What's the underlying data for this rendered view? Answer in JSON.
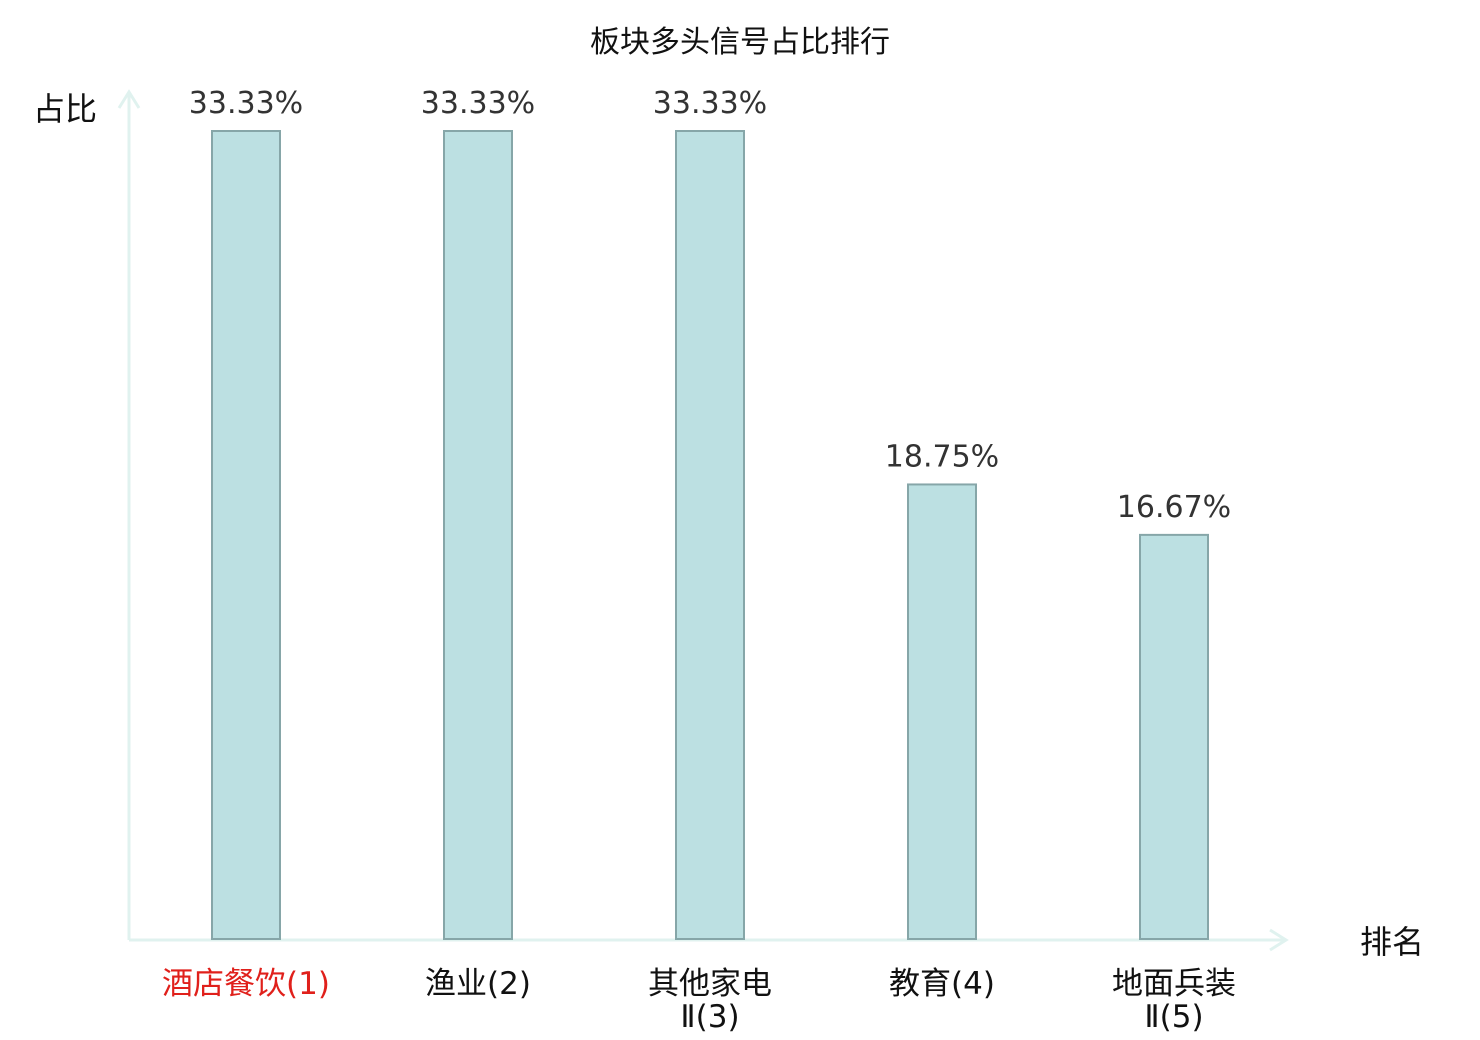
{
  "chart_data": {
    "type": "bar",
    "title": "板块多头信号占比排行",
    "ylabel": "占比",
    "xlabel": "排名",
    "categories": [
      {
        "lines": [
          "酒店餐饮(1)"
        ],
        "highlight": true
      },
      {
        "lines": [
          "渔业(2)"
        ],
        "highlight": false
      },
      {
        "lines": [
          "其他家电",
          "Ⅱ(3)"
        ],
        "highlight": false
      },
      {
        "lines": [
          "教育(4)"
        ],
        "highlight": false
      },
      {
        "lines": [
          "地面兵装",
          "Ⅱ(5)"
        ],
        "highlight": false
      }
    ],
    "values": [
      33.33,
      33.33,
      33.33,
      18.75,
      16.67
    ],
    "value_labels": [
      "33.33%",
      "33.33%",
      "33.33%",
      "18.75%",
      "16.67%"
    ],
    "ylim": [
      0,
      33.33
    ],
    "grid": false,
    "colors": {
      "bar_fill": "#bce0e2",
      "bar_stroke": "#86a6a8",
      "axis": "#e0f2ef",
      "highlight_text": "#e0201b"
    }
  }
}
